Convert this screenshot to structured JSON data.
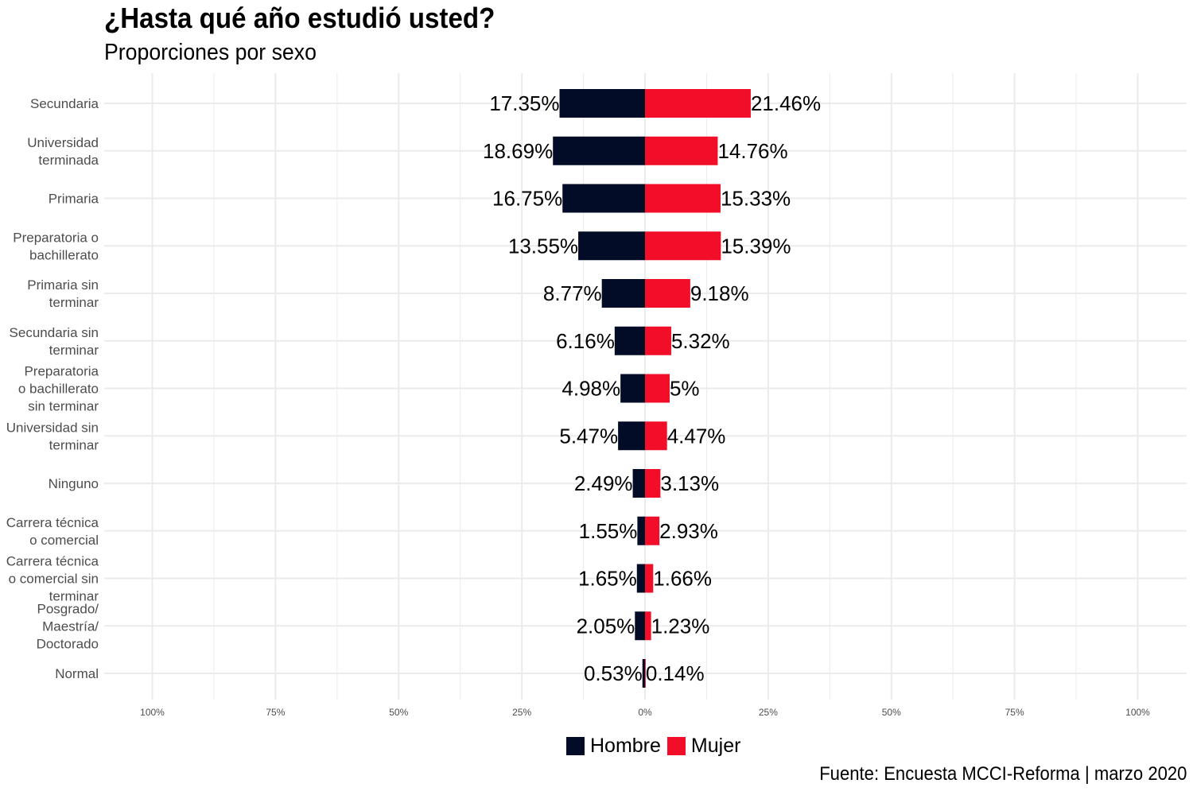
{
  "title": "¿Hasta qué año estudió usted?",
  "subtitle": "Proporciones por sexo",
  "caption": "Fuente: Encuesta MCCI-Reforma | marzo 2020",
  "colors": {
    "hombre": "#020c26",
    "mujer": "#f20d29",
    "grid": "#ebebeb"
  },
  "chart_data": {
    "type": "bar",
    "orientation": "horizontal-diverging",
    "title": "¿Hasta qué año estudió usted?",
    "subtitle": "Proporciones por sexo",
    "xlim": [
      -100,
      100
    ],
    "x_ticks": [
      -100,
      -75,
      -50,
      -25,
      0,
      25,
      50,
      75,
      100
    ],
    "x_tick_labels": [
      "100%",
      "75%",
      "50%",
      "25%",
      "0%",
      "25%",
      "50%",
      "75%",
      "100%"
    ],
    "categories": [
      [
        "Secundaria"
      ],
      [
        "Universidad",
        "terminada"
      ],
      [
        "Primaria"
      ],
      [
        "Preparatoria o",
        "bachillerato"
      ],
      [
        "Primaria sin",
        "terminar"
      ],
      [
        "Secundaria sin",
        "terminar"
      ],
      [
        "Preparatoria",
        "o bachillerato",
        "sin terminar"
      ],
      [
        "Universidad sin",
        "terminar"
      ],
      [
        "Ninguno"
      ],
      [
        "Carrera técnica",
        "o comercial"
      ],
      [
        "Carrera técnica",
        "o comercial sin",
        "terminar"
      ],
      [
        "Posgrado/",
        "Maestría/",
        "Doctorado"
      ],
      [
        "Normal"
      ]
    ],
    "series": [
      {
        "name": "Hombre",
        "direction": "left",
        "values": [
          17.35,
          18.69,
          16.75,
          13.55,
          8.77,
          6.16,
          4.98,
          5.47,
          2.49,
          1.55,
          1.65,
          2.05,
          0.53
        ],
        "labels": [
          "17.35%",
          "18.69%",
          "16.75%",
          "13.55%",
          "8.77%",
          "6.16%",
          "4.98%",
          "5.47%",
          "2.49%",
          "1.55%",
          "1.65%",
          "2.05%",
          "0.53%"
        ]
      },
      {
        "name": "Mujer",
        "direction": "right",
        "values": [
          21.46,
          14.76,
          15.33,
          15.39,
          9.18,
          5.32,
          5,
          4.47,
          3.13,
          2.93,
          1.66,
          1.23,
          0.14
        ],
        "labels": [
          "21.46%",
          "14.76%",
          "15.33%",
          "15.39%",
          "9.18%",
          "5.32%",
          "5%",
          "4.47%",
          "3.13%",
          "2.93%",
          "1.66%",
          "1.23%",
          "0.14%"
        ]
      }
    ],
    "legend": [
      "Hombre",
      "Mujer"
    ],
    "legend_position": "bottom"
  }
}
